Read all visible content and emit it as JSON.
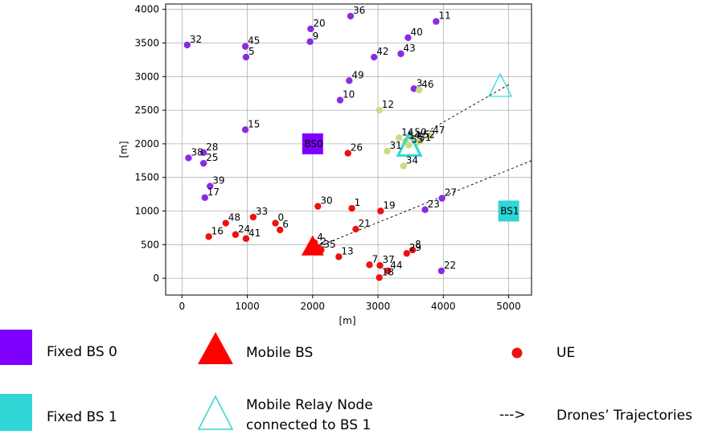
{
  "colors": {
    "fixed_bs_0": "#7f00ff",
    "fixed_bs_1": "#2ed6d6",
    "mobile_bs": "#ff0000",
    "ue_red": "#ee1111",
    "ue_purple": "#8a2be2",
    "ue_yellow": "#c8dc82",
    "relay_stroke": "#2ed6d6"
  },
  "chart_data": {
    "type": "scatter",
    "title": "",
    "xlabel": "[m]",
    "ylabel": "[m]",
    "xlim": [
      -250,
      5350
    ],
    "ylim": [
      -250,
      4080
    ],
    "xticks": [
      0,
      1000,
      2000,
      3000,
      4000,
      5000
    ],
    "yticks": [
      0,
      500,
      1000,
      1500,
      2000,
      2500,
      3000,
      3500,
      4000
    ],
    "grid": true,
    "fixed_bs": [
      {
        "id": "BS0",
        "label": "BS0",
        "x": 2000,
        "y": 2000,
        "color_key": "fixed_bs_0"
      },
      {
        "id": "BS1",
        "label": "BS1",
        "x": 5000,
        "y": 1000,
        "color_key": "fixed_bs_1"
      }
    ],
    "mobile_bs": [
      {
        "label": "",
        "x": 2000,
        "y": 470
      }
    ],
    "relay_nodes": [
      {
        "label": "",
        "x": 3480,
        "y": 1970
      },
      {
        "label": "",
        "x": 4870,
        "y": 2850
      }
    ],
    "trajectories": [
      {
        "from": [
          5000,
          2880
        ],
        "to": [
          3600,
          2100
        ]
      },
      {
        "from": [
          5350,
          1750
        ],
        "to": [
          2080,
          470
        ]
      }
    ],
    "ues": [
      {
        "id": "0",
        "x": 1430,
        "y": 820,
        "c": "ue_red"
      },
      {
        "id": "1",
        "x": 2600,
        "y": 1040,
        "c": "ue_red"
      },
      {
        "id": "2",
        "x": 2080,
        "y": 460,
        "c": "ue_red"
      },
      {
        "id": "3",
        "x": 3550,
        "y": 2820,
        "c": "ue_purple"
      },
      {
        "id": "4",
        "x": 2030,
        "y": 530,
        "c": "ue_red"
      },
      {
        "id": "5",
        "x": 980,
        "y": 3290,
        "c": "ue_purple"
      },
      {
        "id": "6",
        "x": 1500,
        "y": 720,
        "c": "ue_red"
      },
      {
        "id": "7",
        "x": 2870,
        "y": 200,
        "c": "ue_red"
      },
      {
        "id": "8",
        "x": 3530,
        "y": 420,
        "c": "ue_red"
      },
      {
        "id": "9",
        "x": 1960,
        "y": 3520,
        "c": "ue_purple"
      },
      {
        "id": "10",
        "x": 2420,
        "y": 2650,
        "c": "ue_purple"
      },
      {
        "id": "11",
        "x": 3890,
        "y": 3820,
        "c": "ue_purple"
      },
      {
        "id": "12",
        "x": 3020,
        "y": 2500,
        "c": "ue_yellow"
      },
      {
        "id": "13",
        "x": 2400,
        "y": 320,
        "c": "ue_red"
      },
      {
        "id": "14",
        "x": 3320,
        "y": 2090,
        "c": "ue_yellow"
      },
      {
        "id": "15",
        "x": 970,
        "y": 2210,
        "c": "ue_purple"
      },
      {
        "id": "16",
        "x": 410,
        "y": 620,
        "c": "ue_red"
      },
      {
        "id": "17",
        "x": 350,
        "y": 1200,
        "c": "ue_purple"
      },
      {
        "id": "18",
        "x": 3020,
        "y": 10,
        "c": "ue_red"
      },
      {
        "id": "19",
        "x": 3040,
        "y": 1000,
        "c": "ue_red"
      },
      {
        "id": "20",
        "x": 1970,
        "y": 3710,
        "c": "ue_purple"
      },
      {
        "id": "21",
        "x": 2660,
        "y": 730,
        "c": "ue_red"
      },
      {
        "id": "22",
        "x": 3970,
        "y": 110,
        "c": "ue_purple"
      },
      {
        "id": "23",
        "x": 3720,
        "y": 1020,
        "c": "ue_purple"
      },
      {
        "id": "24",
        "x": 820,
        "y": 650,
        "c": "ue_red"
      },
      {
        "id": "25",
        "x": 330,
        "y": 1710,
        "c": "ue_purple"
      },
      {
        "id": "26",
        "x": 2540,
        "y": 1860,
        "c": "ue_red"
      },
      {
        "id": "27",
        "x": 3980,
        "y": 1190,
        "c": "ue_purple"
      },
      {
        "id": "28",
        "x": 330,
        "y": 1870,
        "c": "ue_purple"
      },
      {
        "id": "29",
        "x": 3440,
        "y": 370,
        "c": "ue_red"
      },
      {
        "id": "30",
        "x": 2080,
        "y": 1070,
        "c": "ue_red"
      },
      {
        "id": "31",
        "x": 3140,
        "y": 1890,
        "c": "ue_yellow"
      },
      {
        "id": "32",
        "x": 80,
        "y": 3470,
        "c": "ue_purple"
      },
      {
        "id": "33",
        "x": 1090,
        "y": 910,
        "c": "ue_red"
      },
      {
        "id": "34",
        "x": 3390,
        "y": 1670,
        "c": "ue_yellow"
      },
      {
        "id": "35",
        "x": 2130,
        "y": 420,
        "c": "ue_red"
      },
      {
        "id": "36",
        "x": 2580,
        "y": 3900,
        "c": "ue_purple"
      },
      {
        "id": "37",
        "x": 3030,
        "y": 190,
        "c": "ue_red"
      },
      {
        "id": "38",
        "x": 100,
        "y": 1790,
        "c": "ue_purple"
      },
      {
        "id": "39",
        "x": 430,
        "y": 1370,
        "c": "ue_purple"
      },
      {
        "id": "40",
        "x": 3460,
        "y": 3580,
        "c": "ue_purple"
      },
      {
        "id": "41",
        "x": 980,
        "y": 590,
        "c": "ue_red"
      },
      {
        "id": "42",
        "x": 2940,
        "y": 3290,
        "c": "ue_purple"
      },
      {
        "id": "43",
        "x": 3350,
        "y": 3340,
        "c": "ue_purple"
      },
      {
        "id": "44",
        "x": 3150,
        "y": 110,
        "c": "ue_red"
      },
      {
        "id": "45",
        "x": 970,
        "y": 3450,
        "c": "ue_purple"
      },
      {
        "id": "46",
        "x": 3630,
        "y": 2800,
        "c": "ue_yellow"
      },
      {
        "id": "47",
        "x": 3800,
        "y": 2120,
        "c": "ue_yellow"
      },
      {
        "id": "48",
        "x": 670,
        "y": 820,
        "c": "ue_red"
      },
      {
        "id": "49",
        "x": 2560,
        "y": 2940,
        "c": "ue_purple"
      },
      {
        "id": "50",
        "x": 3520,
        "y": 2090,
        "c": "ue_yellow"
      },
      {
        "id": "51",
        "x": 3590,
        "y": 2010,
        "c": "ue_yellow"
      },
      {
        "id": "52",
        "x": 3650,
        "y": 2050,
        "c": "ue_yellow"
      },
      {
        "id": "53",
        "x": 3470,
        "y": 1980,
        "c": "ue_yellow"
      },
      {
        "id": "54",
        "x": 3420,
        "y": 2040,
        "c": "ue_yellow"
      }
    ]
  },
  "legend": {
    "fixed_bs_0": "Fixed BS 0",
    "fixed_bs_1": "Fixed BS 1",
    "mobile_bs": "Mobile BS",
    "relay_line1": "Mobile Relay Node",
    "relay_line2": "connected to BS 1",
    "ue": "UE",
    "trajectories_arrow": "--->",
    "trajectories": "Drones’ Trajectories"
  }
}
